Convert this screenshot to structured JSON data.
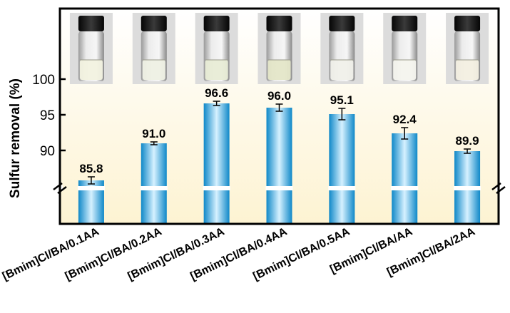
{
  "chart_data": {
    "type": "bar",
    "ylabel": "Sulfur removal (%)",
    "categories": [
      "[Bmim]Cl/BA/0.1AA",
      "[Bmim]Cl/BA/0.2AA",
      "[Bmim]Cl/BA/0.3AA",
      "[Bmim]Cl/BA/0.4AA",
      "[Bmim]Cl/BA/0.5AA",
      "[Bmim]Cl/BA/AA",
      "[Bmim]Cl/BA/2AA"
    ],
    "values": [
      85.8,
      91.0,
      96.6,
      96.0,
      95.1,
      92.4,
      89.9
    ],
    "value_labels": [
      "85.8",
      "91.0",
      "96.6",
      "96.0",
      "95.1",
      "92.4",
      "89.9"
    ],
    "errors": [
      0.5,
      0.2,
      0.3,
      0.5,
      0.8,
      0.8,
      0.3
    ],
    "yticks": [
      "90",
      "95",
      "100"
    ],
    "ytick_values": [
      90,
      95,
      100
    ],
    "ylim": [
      85,
      105
    ],
    "axis_break": true,
    "grid": false,
    "bar_color": "#29a3dc",
    "background_gradient": [
      "#ffffff",
      "#fdf3d2"
    ],
    "vial_photos": true,
    "vial_liquid_colors": [
      "#f2f2e0",
      "#eef0e4",
      "#e8ecd6",
      "#e4e6c8",
      "#f0f0ea",
      "#f4f4ee",
      "#f3efe2"
    ]
  }
}
